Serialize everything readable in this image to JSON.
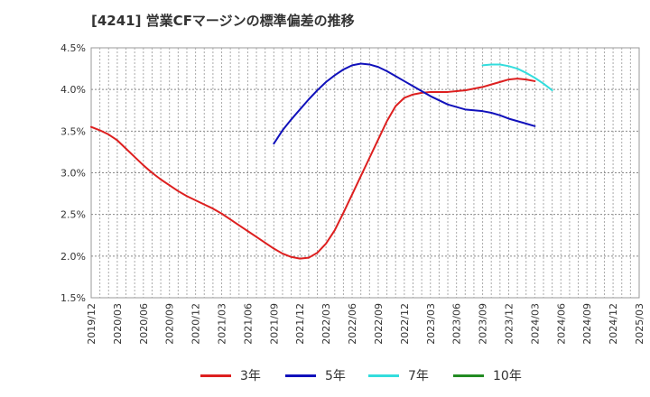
{
  "chart_data": {
    "type": "line",
    "title": "[4241]  営業CFマージンの標準偏差の推移",
    "xlabel": "",
    "ylabel": "",
    "ylim": [
      1.5,
      4.5
    ],
    "yticks": [
      "1.5%",
      "2.0%",
      "2.5%",
      "3.0%",
      "3.5%",
      "4.0%",
      "4.5%"
    ],
    "ytick_values": [
      1.5,
      2.0,
      2.5,
      3.0,
      3.5,
      4.0,
      4.5
    ],
    "xticks": [
      "2019/12",
      "2020/03",
      "2020/06",
      "2020/09",
      "2020/12",
      "2021/03",
      "2021/06",
      "2021/09",
      "2021/12",
      "2022/03",
      "2022/06",
      "2022/09",
      "2022/12",
      "2023/03",
      "2023/06",
      "2023/09",
      "2023/12",
      "2024/03",
      "2024/06",
      "2024/09",
      "2024/12",
      "2025/03"
    ],
    "grid": true,
    "legend_position": "bottom",
    "series": [
      {
        "name": "3年",
        "color": "#dd1f1f",
        "points": [
          [
            "2019/12",
            3.55
          ],
          [
            "2020/01",
            3.51
          ],
          [
            "2020/02",
            3.46
          ],
          [
            "2020/03",
            3.39
          ],
          [
            "2020/04",
            3.29
          ],
          [
            "2020/05",
            3.19
          ],
          [
            "2020/06",
            3.09
          ],
          [
            "2020/07",
            3.0
          ],
          [
            "2020/08",
            2.92
          ],
          [
            "2020/09",
            2.85
          ],
          [
            "2020/10",
            2.78
          ],
          [
            "2020/11",
            2.72
          ],
          [
            "2020/12",
            2.67
          ],
          [
            "2021/01",
            2.62
          ],
          [
            "2021/02",
            2.57
          ],
          [
            "2021/03",
            2.51
          ],
          [
            "2021/04",
            2.44
          ],
          [
            "2021/05",
            2.37
          ],
          [
            "2021/06",
            2.3
          ],
          [
            "2021/07",
            2.23
          ],
          [
            "2021/08",
            2.16
          ],
          [
            "2021/09",
            2.09
          ],
          [
            "2021/10",
            2.03
          ],
          [
            "2021/11",
            1.99
          ],
          [
            "2021/12",
            1.97
          ],
          [
            "2022/01",
            1.98
          ],
          [
            "2022/02",
            2.04
          ],
          [
            "2022/03",
            2.15
          ],
          [
            "2022/04",
            2.31
          ],
          [
            "2022/05",
            2.52
          ],
          [
            "2022/06",
            2.74
          ],
          [
            "2022/07",
            2.96
          ],
          [
            "2022/08",
            3.18
          ],
          [
            "2022/09",
            3.4
          ],
          [
            "2022/10",
            3.62
          ],
          [
            "2022/11",
            3.8
          ],
          [
            "2022/12",
            3.9
          ],
          [
            "2023/01",
            3.94
          ],
          [
            "2023/02",
            3.96
          ],
          [
            "2023/03",
            3.97
          ],
          [
            "2023/04",
            3.97
          ],
          [
            "2023/05",
            3.97
          ],
          [
            "2023/06",
            3.98
          ],
          [
            "2023/07",
            3.99
          ],
          [
            "2023/08",
            4.01
          ],
          [
            "2023/09",
            4.03
          ],
          [
            "2023/10",
            4.06
          ],
          [
            "2023/11",
            4.09
          ],
          [
            "2023/12",
            4.12
          ],
          [
            "2024/01",
            4.13
          ],
          [
            "2024/02",
            4.12
          ],
          [
            "2024/03",
            4.1
          ]
        ]
      },
      {
        "name": "5年",
        "color": "#1111bb",
        "points": [
          [
            "2021/09",
            3.35
          ],
          [
            "2021/10",
            3.51
          ],
          [
            "2021/11",
            3.64
          ],
          [
            "2021/12",
            3.76
          ],
          [
            "2022/01",
            3.88
          ],
          [
            "2022/02",
            3.99
          ],
          [
            "2022/03",
            4.09
          ],
          [
            "2022/04",
            4.17
          ],
          [
            "2022/05",
            4.24
          ],
          [
            "2022/06",
            4.29
          ],
          [
            "2022/07",
            4.31
          ],
          [
            "2022/08",
            4.3
          ],
          [
            "2022/09",
            4.27
          ],
          [
            "2022/10",
            4.22
          ],
          [
            "2022/11",
            4.16
          ],
          [
            "2022/12",
            4.1
          ],
          [
            "2023/01",
            4.04
          ],
          [
            "2023/02",
            3.98
          ],
          [
            "2023/03",
            3.92
          ],
          [
            "2023/04",
            3.87
          ],
          [
            "2023/05",
            3.82
          ],
          [
            "2023/06",
            3.79
          ],
          [
            "2023/07",
            3.76
          ],
          [
            "2023/08",
            3.75
          ],
          [
            "2023/09",
            3.74
          ],
          [
            "2023/10",
            3.72
          ],
          [
            "2023/11",
            3.69
          ],
          [
            "2023/12",
            3.65
          ],
          [
            "2024/01",
            3.62
          ],
          [
            "2024/02",
            3.59
          ],
          [
            "2024/03",
            3.56
          ]
        ]
      },
      {
        "name": "7年",
        "color": "#33dddd",
        "points": [
          [
            "2023/09",
            4.29
          ],
          [
            "2023/10",
            4.3
          ],
          [
            "2023/11",
            4.3
          ],
          [
            "2023/12",
            4.28
          ],
          [
            "2024/01",
            4.25
          ],
          [
            "2024/02",
            4.2
          ],
          [
            "2024/03",
            4.14
          ],
          [
            "2024/04",
            4.07
          ],
          [
            "2024/05",
            3.99
          ]
        ]
      },
      {
        "name": "10年",
        "color": "#228b22",
        "points": []
      }
    ]
  }
}
